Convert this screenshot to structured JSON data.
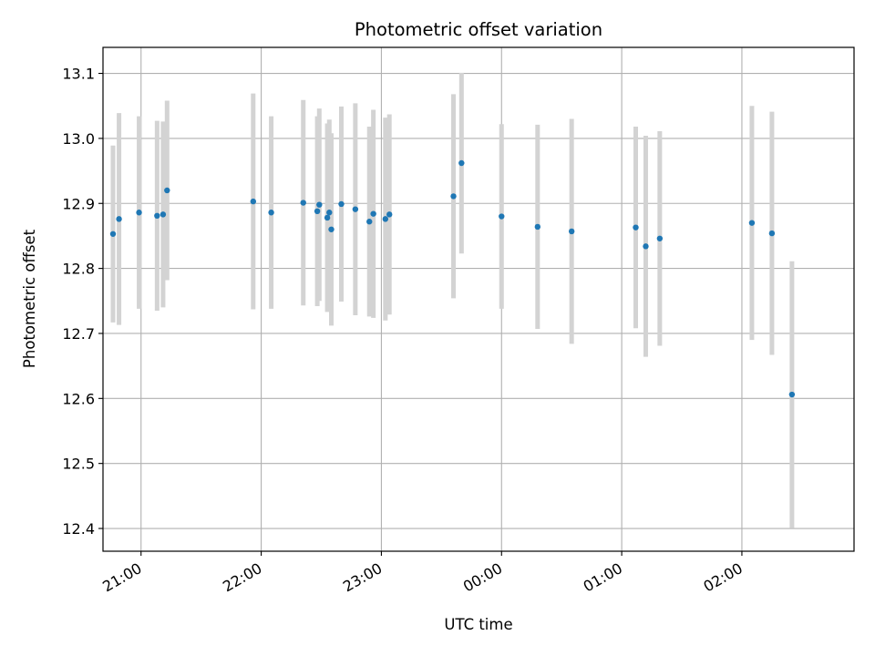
{
  "chart_data": {
    "type": "scatter",
    "title": "Photometric offset variation",
    "xlabel": "UTC time",
    "ylabel": "Photometric offset",
    "xlim": [
      "20:41",
      "02:56"
    ],
    "ylim": [
      12.365,
      13.14
    ],
    "x_ticks": [
      "21:00",
      "22:00",
      "23:00",
      "00:00",
      "01:00",
      "02:00"
    ],
    "y_ticks": [
      "12.4",
      "12.5",
      "12.6",
      "12.7",
      "12.8",
      "12.9",
      "13.0",
      "13.1"
    ],
    "grid": true,
    "colors": {
      "point": "#1f77b4",
      "errorbar": "#d3d3d3",
      "grid": "#b0b0b0"
    },
    "x": [
      "20:46",
      "20:49",
      "20:59",
      "21:08",
      "21:11",
      "21:13",
      "21:56",
      "22:05",
      "22:21",
      "22:28",
      "22:29",
      "22:33",
      "22:34",
      "22:35",
      "22:40",
      "22:47",
      "22:54",
      "22:56",
      "23:02",
      "23:04",
      "23:36",
      "23:40",
      "00:00",
      "00:18",
      "00:35",
      "01:07",
      "01:12",
      "01:19",
      "02:05",
      "02:15",
      "02:25"
    ],
    "y": [
      12.853,
      12.876,
      12.886,
      12.881,
      12.883,
      12.92,
      12.903,
      12.886,
      12.901,
      12.888,
      12.898,
      12.878,
      12.886,
      12.86,
      12.899,
      12.891,
      12.872,
      12.884,
      12.876,
      12.883,
      12.911,
      12.962,
      12.88,
      12.864,
      12.857,
      12.863,
      12.834,
      12.846,
      12.87,
      12.854,
      12.606
    ],
    "yerr": [
      0.136,
      0.163,
      0.148,
      0.146,
      0.143,
      0.138,
      0.166,
      0.148,
      0.158,
      0.146,
      0.148,
      0.145,
      0.143,
      0.148,
      0.15,
      0.163,
      0.146,
      0.16,
      0.156,
      0.154,
      0.157,
      0.139,
      0.142,
      0.157,
      0.173,
      0.155,
      0.17,
      0.165,
      0.18,
      0.187,
      0.205
    ]
  }
}
